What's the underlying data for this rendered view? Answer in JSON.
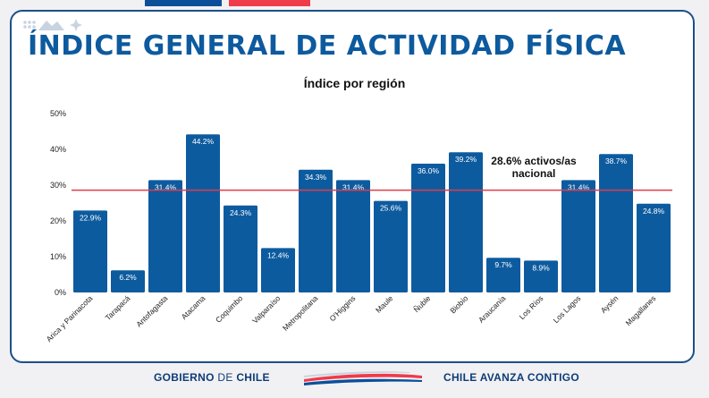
{
  "title": "ÍNDICE GENERAL DE ACTIVIDAD FÍSICA",
  "footer": {
    "left_bold_1": "GOBIERNO",
    "left_light": "DE",
    "left_bold_2": "CHILE",
    "right": "CHILE AVANZA CONTIGO"
  },
  "colors": {
    "bar": "#0d5b9f",
    "reference_line": "#e23c4b",
    "title": "#0d5a9e",
    "flag_blue": "#0b4f9a",
    "flag_red": "#ef3b4a"
  },
  "chart_data": {
    "type": "bar",
    "title": "Índice por región",
    "categories": [
      "Arica y Parinacota",
      "Tarapacá",
      "Antofagasta",
      "Atacama",
      "Coquimbo",
      "Valparaíso",
      "Metropolitana",
      "O'Higgins",
      "Maule",
      "Ñuble",
      "Biobío",
      "Araucanía",
      "Los Ríos",
      "Los Lagos",
      "Aysén",
      "Magallanes"
    ],
    "values": [
      22.9,
      6.2,
      31.4,
      44.2,
      24.3,
      12.4,
      34.3,
      31.4,
      25.6,
      36.0,
      39.2,
      9.7,
      8.9,
      31.4,
      38.7,
      24.8
    ],
    "value_labels": [
      "22.9%",
      "6.2%",
      "31.4%",
      "44.2%",
      "24.3%",
      "12.4%",
      "34.3%",
      "31.4%",
      "25.6%",
      "36.0%",
      "39.2%",
      "9.7%",
      "8.9%",
      "31.4%",
      "38.7%",
      "24.8%"
    ],
    "y_ticks": [
      "0%",
      "10%",
      "20%",
      "30%",
      "40%",
      "50%"
    ],
    "ylim": [
      0,
      50
    ],
    "grid": false,
    "reference_line": {
      "value": 28.6,
      "label_line1": "28.6% activos/as",
      "label_line2": "nacional"
    }
  }
}
